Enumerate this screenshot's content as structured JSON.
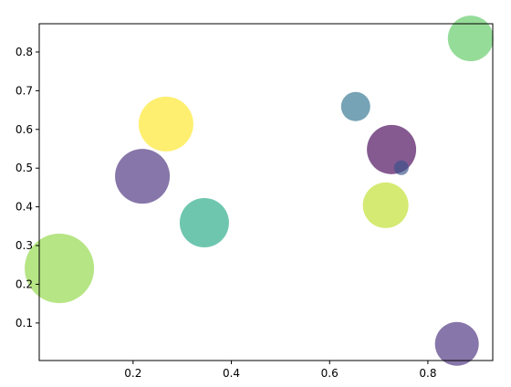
{
  "chart_data": {
    "type": "scatter",
    "x": [
      0.05,
      0.219,
      0.267,
      0.345,
      0.653,
      0.726,
      0.746,
      0.714,
      0.887,
      0.859
    ],
    "values": [
      0.241,
      0.479,
      0.614,
      0.359,
      0.659,
      0.548,
      0.501,
      0.404,
      0.835,
      0.046
    ],
    "sizes": [
      3000,
      1866,
      1866,
      1512,
      531,
      1512,
      133,
      1296,
      1296,
      1194
    ],
    "colors": [
      "#8fd744",
      "#472d7b",
      "#fde725",
      "#22a884",
      "#2c728e",
      "#440154",
      "#3b528b",
      "#bddf26",
      "#5ec962",
      "#472d7b"
    ],
    "alpha": 0.65,
    "xlim": [
      0.009,
      0.932
    ],
    "ylim": [
      0.003,
      0.873
    ],
    "xticks": [
      0.2,
      0.4,
      0.6,
      0.8
    ],
    "yticks": [
      0.1,
      0.2,
      0.3,
      0.4,
      0.5,
      0.6,
      0.7,
      0.8
    ]
  }
}
